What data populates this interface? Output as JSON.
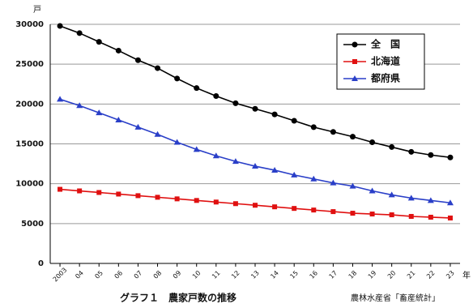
{
  "chart_data": {
    "type": "line",
    "y_unit": "戸",
    "x_unit": "年",
    "title": "グラフ１　農家戸数の推移",
    "source": "農林水産省「畜産統計」",
    "categories": [
      "2003",
      "04",
      "05",
      "06",
      "07",
      "08",
      "09",
      "10",
      "11",
      "12",
      "13",
      "14",
      "15",
      "16",
      "17",
      "18",
      "19",
      "20",
      "21",
      "22",
      "23"
    ],
    "series": [
      {
        "name": "全　国",
        "color": "#000000",
        "marker": "circle",
        "values": [
          29800,
          28900,
          27800,
          26700,
          25500,
          24500,
          23200,
          22000,
          21000,
          20100,
          19400,
          18700,
          17900,
          17100,
          16500,
          15900,
          15200,
          14600,
          14000,
          13600,
          13300
        ]
      },
      {
        "name": "北海道",
        "color": "#e01010",
        "marker": "square",
        "values": [
          9300,
          9100,
          8900,
          8700,
          8500,
          8300,
          8100,
          7900,
          7700,
          7500,
          7300,
          7100,
          6900,
          6700,
          6500,
          6300,
          6200,
          6100,
          5900,
          5800,
          5700
        ]
      },
      {
        "name": "都府県",
        "color": "#2a3fc8",
        "marker": "triangle",
        "values": [
          20600,
          19800,
          18900,
          18000,
          17100,
          16200,
          15200,
          14300,
          13500,
          12800,
          12200,
          11700,
          11100,
          10600,
          10100,
          9700,
          9100,
          8600,
          8200,
          7900,
          7600
        ]
      }
    ],
    "ylim": [
      0,
      30000
    ],
    "yticks": [
      0,
      5000,
      10000,
      15000,
      20000,
      25000,
      30000
    ],
    "grid": true,
    "legend": "top-right"
  }
}
